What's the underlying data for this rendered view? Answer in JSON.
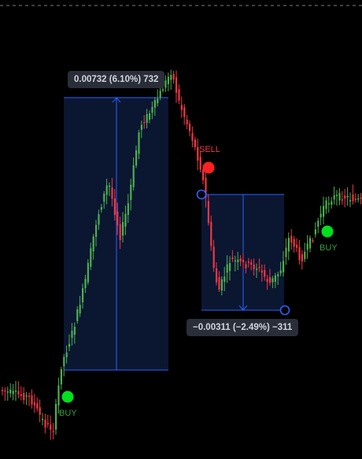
{
  "colors": {
    "background": "#000000",
    "candle_up": "#4caf50",
    "candle_down": "#f23645",
    "measure_line": "#2962ff",
    "measure_fill": "#0b1631",
    "buy_dot": "#00e01e",
    "sell_dot": "#ff2020",
    "buy_text": "#36a03a",
    "sell_text": "#f23645",
    "label_bg": "#2a2e39",
    "label_text": "#d1d4dc",
    "dashed_line": "#787b86"
  },
  "measurements": [
    {
      "label": "0.00732 (6.10%) 732",
      "direction": "up"
    },
    {
      "label": "−0.00311 (−2.49%) −311",
      "direction": "down"
    }
  ],
  "signals": [
    {
      "type": "BUY",
      "text": "BUY"
    },
    {
      "type": "SELL",
      "text": "SELL"
    },
    {
      "type": "BUY",
      "text": "BUY"
    }
  ],
  "icons": {
    "up_arrow": "arrow-up-icon",
    "down_arrow": "arrow-down-icon",
    "anchor_point": "circle-handle-icon"
  }
}
